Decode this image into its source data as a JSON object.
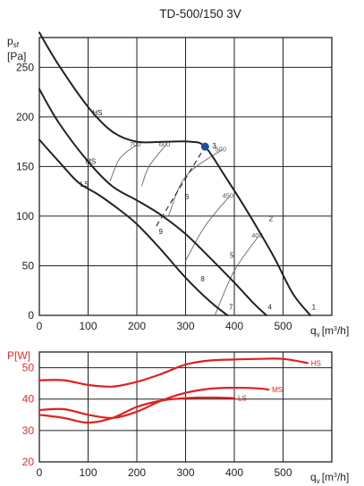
{
  "title": "TD-500/150 3V",
  "chart_data": [
    {
      "type": "line",
      "ylabel_main": "p",
      "ylabel_sub": "sf",
      "yunit": "[Pa]",
      "xlabel_main": "q",
      "xlabel_sub": "v",
      "xunit": "[m",
      "xunit_sup": "3",
      "xunit_tail": "/h]",
      "xlim": [
        0,
        600
      ],
      "ylim": [
        0,
        280
      ],
      "xticks": [
        0,
        100,
        200,
        300,
        400,
        500
      ],
      "yticks": [
        0,
        50,
        100,
        150,
        200,
        250
      ],
      "grid": true,
      "series": [
        {
          "name": "HS",
          "x": [
            0,
            40,
            100,
            150,
            200,
            260,
            310,
            340,
            380,
            430,
            480,
            520,
            556
          ],
          "y": [
            285,
            252,
            210,
            185,
            175,
            175,
            175,
            170,
            141,
            102,
            60,
            22,
            0
          ]
        },
        {
          "name": "MS",
          "x": [
            0,
            40,
            100,
            150,
            200,
            250,
            300,
            350,
            400,
            440,
            466
          ],
          "y": [
            228,
            194,
            155,
            130,
            116,
            101,
            82,
            58,
            33,
            12,
            0
          ]
        },
        {
          "name": "LS",
          "x": [
            0,
            40,
            80,
            120,
            160,
            200,
            250,
            300,
            350,
            386
          ],
          "y": [
            177,
            155,
            134,
            122,
            108,
            92,
            66,
            38,
            14,
            0
          ]
        }
      ],
      "system_lines": [
        {
          "label": "700",
          "x": [
            145,
            165,
            200
          ],
          "y": [
            135,
            158,
            172
          ]
        },
        {
          "label": "600",
          "x": [
            210,
            225,
            260
          ],
          "y": [
            130,
            150,
            172
          ]
        },
        {
          "label": "500",
          "x": [
            265,
            300,
            375
          ],
          "y": [
            100,
            140,
            167
          ]
        },
        {
          "label": "450",
          "x": [
            300,
            340,
            390
          ],
          "y": [
            55,
            90,
            120
          ]
        },
        {
          "label": "400",
          "x": [
            360,
            400,
            450
          ],
          "y": [
            0,
            45,
            80
          ]
        }
      ],
      "marker": {
        "label": "3",
        "x": 340,
        "y": 170,
        "color": "#1f4fa3"
      },
      "dashed_line": {
        "x": [
          240,
          340
        ],
        "y": [
          90,
          170
        ]
      },
      "point_labels": [
        {
          "label": "1",
          "x": 563,
          "y": 6
        },
        {
          "label": "2",
          "x": 475,
          "y": 95
        },
        {
          "label": "4",
          "x": 473,
          "y": 6
        },
        {
          "label": "5",
          "x": 395,
          "y": 58
        },
        {
          "label": "6",
          "x": 303,
          "y": 117
        },
        {
          "label": "7",
          "x": 393,
          "y": 6
        },
        {
          "label": "8",
          "x": 335,
          "y": 34
        },
        {
          "label": "9",
          "x": 249,
          "y": 82
        }
      ]
    },
    {
      "type": "line",
      "ylabel": "P[W]",
      "xlabel_main": "q",
      "xlabel_sub": "v",
      "xunit": "[m",
      "xunit_sup": "3",
      "xunit_tail": "/h]",
      "xlim": [
        0,
        600
      ],
      "ylim": [
        20,
        55
      ],
      "xticks": [
        0,
        100,
        200,
        300,
        400,
        500
      ],
      "yticks": [
        20,
        30,
        40,
        50
      ],
      "grid": true,
      "series": [
        {
          "name": "HS",
          "x": [
            0,
            50,
            100,
            150,
            200,
            250,
            300,
            350,
            400,
            450,
            500,
            550
          ],
          "y": [
            46,
            46,
            44.5,
            44,
            45.5,
            48,
            51,
            52.3,
            52.6,
            52.8,
            52.8,
            51.5
          ]
        },
        {
          "name": "MS",
          "x": [
            0,
            50,
            100,
            150,
            200,
            250,
            300,
            350,
            400,
            450,
            470
          ],
          "y": [
            36.5,
            36.8,
            35,
            34,
            36,
            39.5,
            42,
            43.3,
            43.6,
            43.4,
            43
          ]
        },
        {
          "name": "LS",
          "x": [
            0,
            50,
            100,
            150,
            200,
            250,
            300,
            350,
            400
          ],
          "y": [
            35,
            34,
            32.5,
            34,
            37.5,
            39.5,
            40.3,
            40.5,
            40.3
          ]
        }
      ]
    }
  ]
}
